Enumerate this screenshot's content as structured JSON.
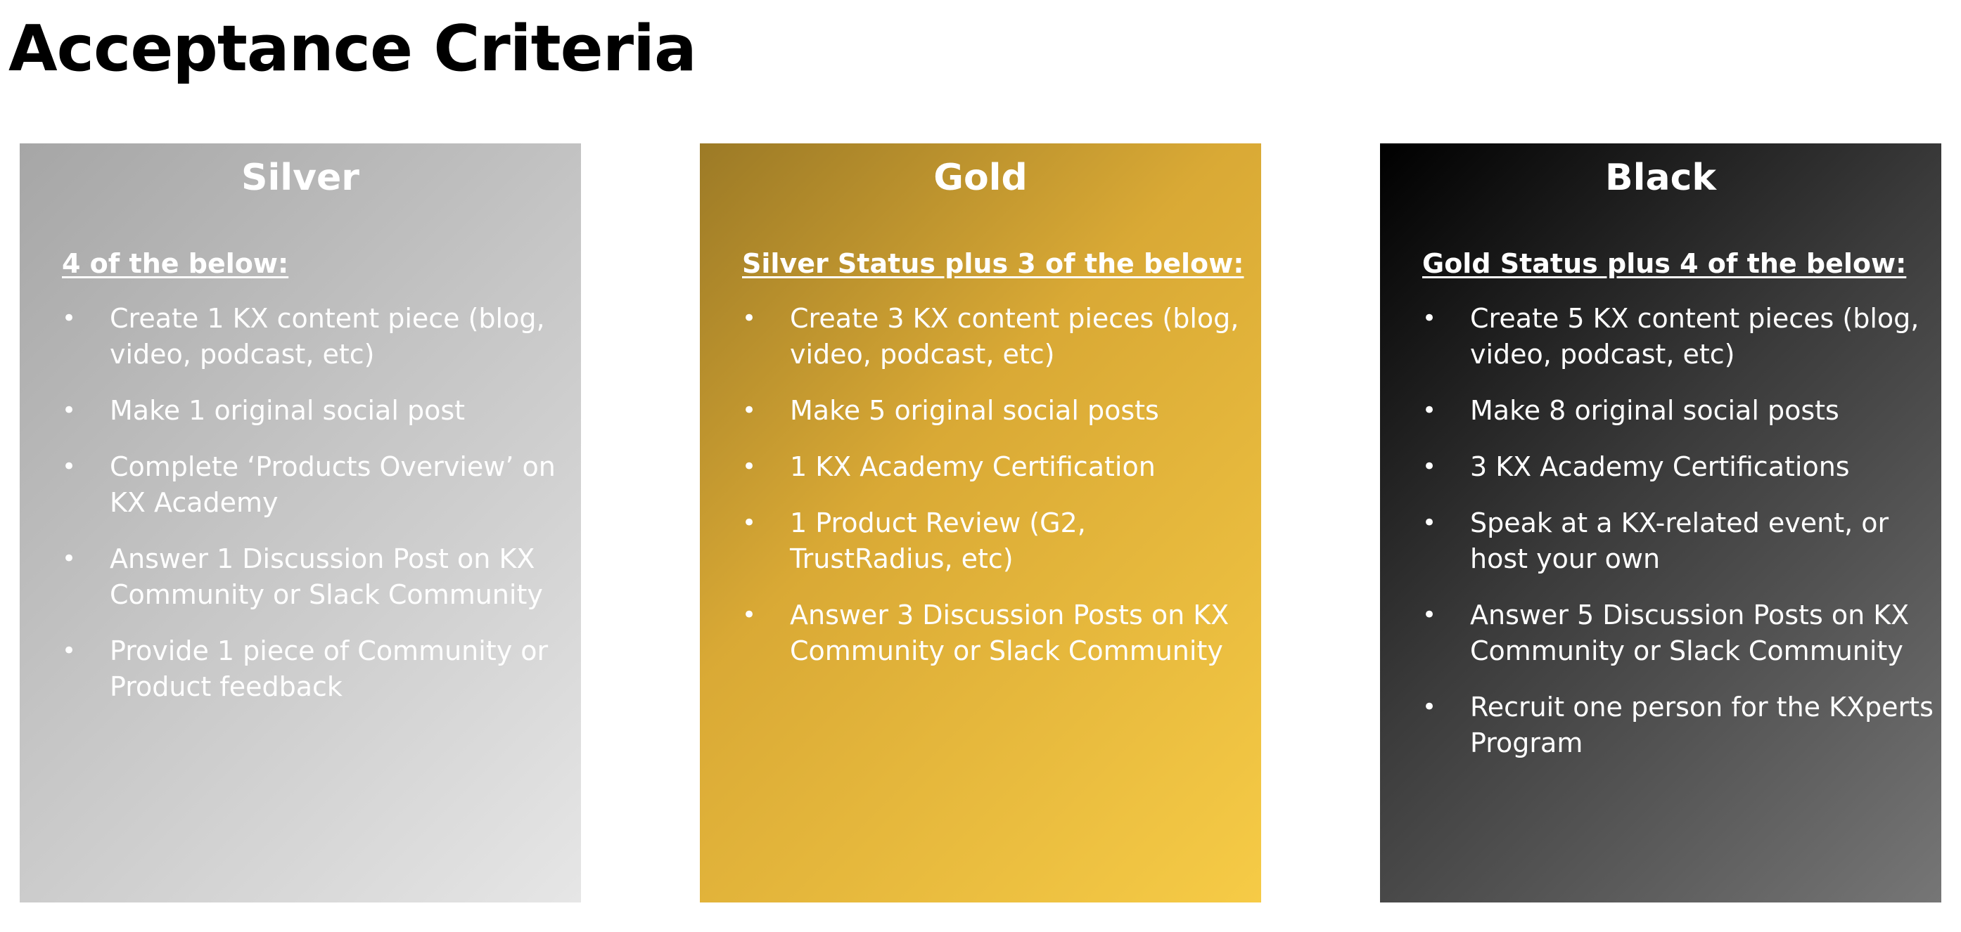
{
  "page": {
    "title": "Acceptance Criteria"
  },
  "bullet_glyph": "•",
  "tiers": {
    "silver": {
      "title": "Silver",
      "intro": "4 of the below:",
      "items": [
        "Create 1 KX content piece (blog, video, podcast, etc)",
        "Make 1 original social post",
        "Complete ‘Products Overview’ on KX Academy",
        "Answer 1 Discussion Post on KX Community or Slack Community",
        "Provide 1 piece of Community or Product feedback"
      ]
    },
    "gold": {
      "title": "Gold",
      "intro": "Silver Status plus 3 of the below:",
      "items": [
        "Create 3 KX content pieces (blog, video, podcast, etc)",
        "Make 5 original social posts",
        "1 KX Academy Certification",
        "1 Product Review (G2, TrustRadius, etc)",
        "Answer 3 Discussion Posts on KX Community or Slack Community"
      ]
    },
    "black": {
      "title": "Black",
      "intro": "Gold Status plus 4 of the below:",
      "items": [
        "Create 5 KX content pieces (blog, video, podcast, etc)",
        "Make 8 original social posts",
        "3 KX Academy Certifications",
        "Speak at a KX-related event, or host your own",
        "Answer 5 Discussion Posts on KX Community or Slack Community",
        "Recruit one person for the KXperts Program"
      ]
    }
  }
}
